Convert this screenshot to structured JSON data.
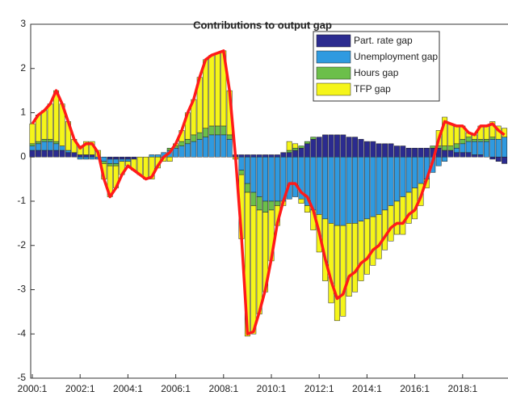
{
  "chart_data": {
    "type": "stacked-bar-line",
    "title": "Contributions to output gap",
    "categories": [
      "2000:1",
      null,
      null,
      null,
      null,
      null,
      null,
      null,
      "2002:1",
      null,
      null,
      null,
      null,
      null,
      null,
      null,
      "2004:1",
      null,
      null,
      null,
      null,
      null,
      null,
      null,
      "2006:1",
      null,
      null,
      null,
      null,
      null,
      null,
      null,
      "2008:1",
      null,
      null,
      null,
      null,
      null,
      null,
      null,
      "2010:1",
      null,
      null,
      null,
      null,
      null,
      null,
      null,
      "2012:1",
      null,
      null,
      null,
      null,
      null,
      null,
      null,
      "2014:1",
      null,
      null,
      null,
      null,
      null,
      null,
      null,
      "2016:1",
      null,
      null,
      null,
      null,
      null,
      null,
      null,
      "2018:1",
      null,
      null,
      null,
      null,
      null,
      null,
      null
    ],
    "series": [
      {
        "name": "Part. rate gap",
        "color": "#2b2b8f",
        "values": [
          0.15,
          0.15,
          0.15,
          0.15,
          0.15,
          0.15,
          0.1,
          0.1,
          0.05,
          0.05,
          0.05,
          0,
          0,
          -0.05,
          -0.05,
          -0.05,
          -0.05,
          -0.05,
          0,
          0,
          0,
          0,
          0,
          0,
          0,
          0,
          0,
          0,
          0,
          0,
          0,
          0,
          0,
          0,
          0.05,
          0.05,
          0.05,
          0.05,
          0.05,
          0.05,
          0.05,
          0.05,
          0.1,
          0.1,
          0.15,
          0.2,
          0.3,
          0.4,
          0.45,
          0.5,
          0.5,
          0.5,
          0.5,
          0.45,
          0.45,
          0.4,
          0.35,
          0.35,
          0.3,
          0.3,
          0.3,
          0.25,
          0.25,
          0.2,
          0.2,
          0.2,
          0.2,
          0.2,
          0.2,
          0.15,
          0.15,
          0.1,
          0.1,
          0.1,
          0.05,
          0.05,
          0,
          -0.05,
          -0.1,
          -0.15
        ]
      },
      {
        "name": "Unemployment gap",
        "color": "#2f9ae0",
        "values": [
          0.1,
          0.15,
          0.2,
          0.2,
          0.15,
          0.1,
          0.05,
          0,
          -0.05,
          -0.05,
          -0.05,
          -0.05,
          -0.1,
          -0.1,
          -0.1,
          -0.05,
          -0.05,
          0,
          0,
          0,
          0.05,
          0.05,
          0.1,
          0.15,
          0.2,
          0.25,
          0.3,
          0.35,
          0.4,
          0.45,
          0.5,
          0.5,
          0.5,
          0.4,
          0,
          -0.3,
          -0.6,
          -0.8,
          -0.9,
          -1.0,
          -1.0,
          -1.0,
          -1.0,
          -0.95,
          -0.9,
          -0.95,
          -1.1,
          -1.2,
          -1.3,
          -1.4,
          -1.5,
          -1.55,
          -1.55,
          -1.5,
          -1.5,
          -1.45,
          -1.4,
          -1.35,
          -1.3,
          -1.2,
          -1.1,
          -1.0,
          -0.9,
          -0.8,
          -0.7,
          -0.6,
          -0.5,
          -0.35,
          -0.2,
          -0.1,
          0,
          0.1,
          0.2,
          0.25,
          0.3,
          0.3,
          0.35,
          0.4,
          0.4,
          0.45
        ]
      },
      {
        "name": "Hours gap",
        "color": "#6cbf4a",
        "values": [
          0.05,
          0.05,
          0.05,
          0.05,
          0.05,
          0,
          0,
          0,
          0,
          0,
          0,
          0,
          -0.05,
          -0.05,
          -0.05,
          0,
          0,
          0,
          0,
          0,
          0,
          0,
          0,
          0.05,
          0.05,
          0.1,
          0.1,
          0.15,
          0.15,
          0.2,
          0.2,
          0.2,
          0.2,
          0.1,
          0,
          -0.1,
          -0.2,
          -0.3,
          -0.3,
          -0.25,
          -0.2,
          -0.1,
          0,
          0.05,
          0.05,
          0.05,
          0.05,
          0.05,
          0,
          0,
          0,
          0,
          0,
          0,
          0,
          0,
          0,
          0,
          0,
          0,
          0,
          0,
          0,
          0,
          0,
          0,
          0,
          0.05,
          0.05,
          0.1,
          0.1,
          0.1,
          0.1,
          0.1,
          0.05,
          0.05,
          0.05,
          0.05,
          0,
          0
        ]
      },
      {
        "name": "TFP gap",
        "color": "#f5f51a",
        "values": [
          0.45,
          0.6,
          0.65,
          0.8,
          1.15,
          0.95,
          0.65,
          0.3,
          0.2,
          0.3,
          0.3,
          0.15,
          -0.35,
          -0.7,
          -0.5,
          -0.3,
          -0.1,
          -0.25,
          -0.4,
          -0.5,
          -0.5,
          -0.25,
          -0.1,
          -0.1,
          0.05,
          0.25,
          0.6,
          0.8,
          1.25,
          1.55,
          1.6,
          1.65,
          1.7,
          1.0,
          -0.05,
          -1.45,
          -3.25,
          -2.9,
          -2.35,
          -1.8,
          -1.15,
          -0.45,
          -0.1,
          0.2,
          0.1,
          -0.1,
          -0.15,
          -0.45,
          -0.85,
          -1.4,
          -1.8,
          -2.15,
          -2.05,
          -1.65,
          -1.55,
          -1.35,
          -1.25,
          -1.1,
          -1.0,
          -0.9,
          -0.8,
          -0.75,
          -0.85,
          -0.7,
          -0.7,
          -0.5,
          -0.2,
          0,
          0.35,
          0.65,
          0.5,
          0.4,
          0.3,
          0.1,
          0.1,
          0.3,
          0.3,
          0.35,
          0.3,
          0.2
        ]
      }
    ],
    "line": {
      "color": "#ff1a1a",
      "values": [
        0.75,
        0.95,
        1.05,
        1.2,
        1.5,
        1.2,
        0.8,
        0.4,
        0.2,
        0.3,
        0.3,
        0.1,
        -0.5,
        -0.9,
        -0.7,
        -0.4,
        -0.2,
        -0.3,
        -0.4,
        -0.5,
        -0.45,
        -0.2,
        0,
        0.1,
        0.3,
        0.6,
        1.0,
        1.3,
        1.8,
        2.2,
        2.3,
        2.35,
        2.4,
        1.5,
        0,
        -1.8,
        -4.0,
        -3.95,
        -3.5,
        -3.0,
        -2.3,
        -1.5,
        -1.0,
        -0.6,
        -0.6,
        -0.8,
        -0.9,
        -1.2,
        -1.7,
        -2.3,
        -2.8,
        -3.2,
        -3.1,
        -2.7,
        -2.6,
        -2.4,
        -2.3,
        -2.1,
        -2.0,
        -1.8,
        -1.6,
        -1.5,
        -1.5,
        -1.3,
        -1.2,
        -0.9,
        -0.5,
        -0.1,
        0.4,
        0.8,
        0.75,
        0.7,
        0.7,
        0.55,
        0.5,
        0.7,
        0.7,
        0.75,
        0.6,
        0.5
      ]
    },
    "ylim": [
      -5,
      3
    ],
    "yticks": [
      -5,
      -4,
      -3,
      -2,
      -1,
      0,
      1,
      2,
      3
    ],
    "legend": "top-right"
  }
}
